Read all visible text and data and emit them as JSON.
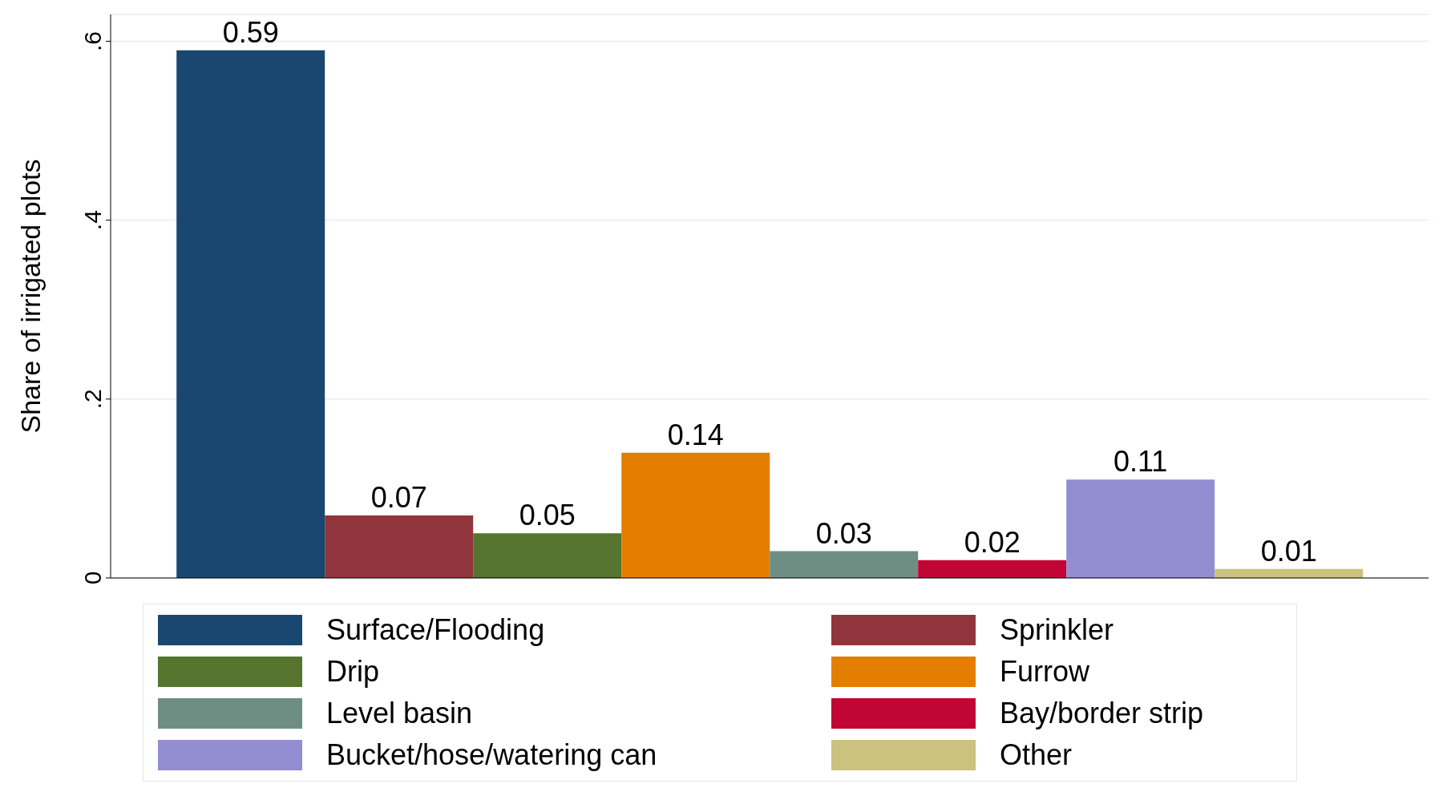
{
  "chart_data": {
    "type": "bar",
    "ylabel": "Share of irrigated plots",
    "categories": [
      null
    ],
    "series": [
      {
        "name": "Surface/Flooding",
        "color": "#1a476f",
        "values": [
          0.59
        ]
      },
      {
        "name": "Sprinkler",
        "color": "#90353b",
        "values": [
          0.07
        ]
      },
      {
        "name": "Drip",
        "color": "#55752f",
        "values": [
          0.05
        ]
      },
      {
        "name": "Furrow",
        "color": "#e37e00",
        "values": [
          0.14
        ]
      },
      {
        "name": "Level basin",
        "color": "#6e8e84",
        "values": [
          0.03
        ]
      },
      {
        "name": "Bay/border strip",
        "color": "#c10534",
        "values": [
          0.02
        ]
      },
      {
        "name": "Bucket/hose/watering can",
        "color": "#938dd2",
        "values": [
          0.11
        ]
      },
      {
        "name": "Other",
        "color": "#cac27e",
        "values": [
          0.01
        ]
      }
    ],
    "ylim": [
      0,
      0.63
    ],
    "yticks": [
      {
        "value": 0,
        "label": "0"
      },
      {
        "value": 0.2,
        "label": ".2"
      },
      {
        "value": 0.4,
        "label": ".4"
      },
      {
        "value": 0.6,
        "label": ".6"
      }
    ],
    "grid": "y",
    "legend": "bottom",
    "data_labels": true
  }
}
